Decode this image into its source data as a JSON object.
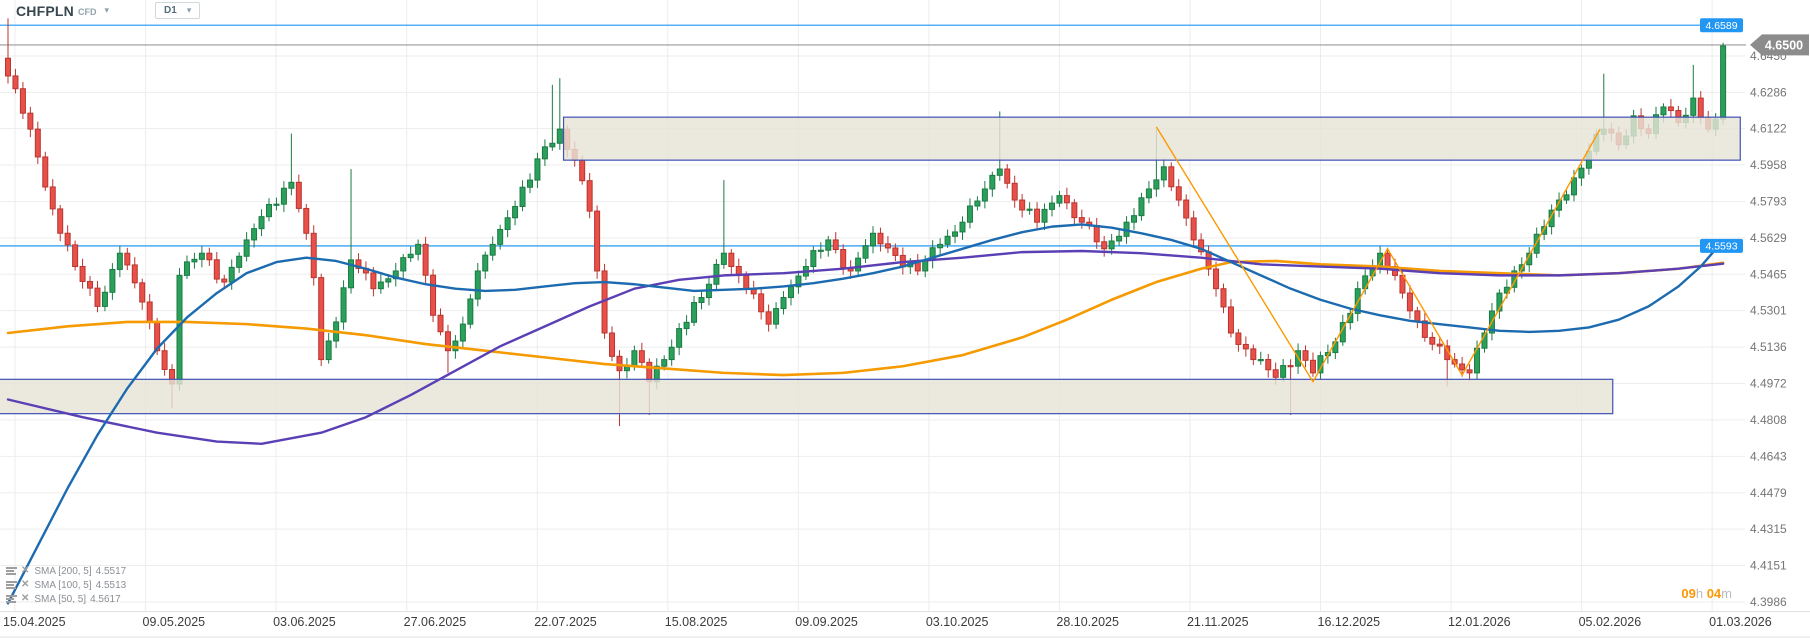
{
  "header": {
    "symbol": "CHFPLN",
    "market": "CFD",
    "timeframe": "D1",
    "symbol_caret": "▾",
    "tf_caret": "▾"
  },
  "countdown": {
    "hours": "09",
    "hours_unit": "h",
    "minutes": "04",
    "minutes_unit": "m"
  },
  "chart_data": {
    "type": "candlestick",
    "title": "CHFPLN CFD, D1",
    "y_ticks": [
      "4.6450",
      "4.6286",
      "4.6122",
      "4.5958",
      "4.5793",
      "4.5629",
      "4.5465",
      "4.5301",
      "4.5136",
      "4.4972",
      "4.4808",
      "4.4643",
      "4.4479",
      "4.4315",
      "4.4151",
      "4.3986"
    ],
    "x_labels": [
      "15.04.2025",
      "09.05.2025",
      "03.06.2025",
      "27.06.2025",
      "22.07.2025",
      "15.08.2025",
      "09.09.2025",
      "03.10.2025",
      "28.10.2025",
      "21.11.2025",
      "16.12.2025",
      "12.01.2026",
      "05.02.2026",
      "01.03.2026"
    ],
    "ylim": [
      4.3986,
      4.665
    ],
    "grid": true,
    "candles": {
      "count": 231,
      "first_open": 4.644,
      "close_anchors": [
        [
          0,
          4.636
        ],
        [
          3,
          4.612
        ],
        [
          6,
          4.576
        ],
        [
          9,
          4.55
        ],
        [
          12,
          4.532
        ],
        [
          15,
          4.556
        ],
        [
          18,
          4.534
        ],
        [
          20,
          4.512
        ],
        [
          22,
          4.497
        ],
        [
          23,
          4.546
        ],
        [
          26,
          4.556
        ],
        [
          29,
          4.543
        ],
        [
          32,
          4.562
        ],
        [
          35,
          4.578
        ],
        [
          38,
          4.588
        ],
        [
          40,
          4.565
        ],
        [
          41,
          4.545
        ],
        [
          42,
          4.508
        ],
        [
          44,
          4.525
        ],
        [
          46,
          4.553
        ],
        [
          49,
          4.54
        ],
        [
          52,
          4.548
        ],
        [
          55,
          4.56
        ],
        [
          57,
          4.528
        ],
        [
          59,
          4.512
        ],
        [
          61,
          4.524
        ],
        [
          63,
          4.548
        ],
        [
          65,
          4.56
        ],
        [
          67,
          4.572
        ],
        [
          70,
          4.589
        ],
        [
          72,
          4.604
        ],
        [
          74,
          4.612
        ],
        [
          76,
          4.598
        ],
        [
          78,
          4.575
        ],
        [
          79,
          4.548
        ],
        [
          80,
          4.52
        ],
        [
          82,
          4.503
        ],
        [
          84,
          4.512
        ],
        [
          86,
          4.498
        ],
        [
          88,
          4.508
        ],
        [
          90,
          4.522
        ],
        [
          93,
          4.536
        ],
        [
          96,
          4.556
        ],
        [
          99,
          4.54
        ],
        [
          102,
          4.524
        ],
        [
          104,
          4.536
        ],
        [
          107,
          4.55
        ],
        [
          110,
          4.562
        ],
        [
          113,
          4.548
        ],
        [
          116,
          4.565
        ],
        [
          119,
          4.555
        ],
        [
          122,
          4.548
        ],
        [
          125,
          4.56
        ],
        [
          128,
          4.57
        ],
        [
          131,
          4.585
        ],
        [
          133,
          4.594
        ],
        [
          135,
          4.58
        ],
        [
          138,
          4.57
        ],
        [
          141,
          4.582
        ],
        [
          144,
          4.57
        ],
        [
          147,
          4.558
        ],
        [
          150,
          4.57
        ],
        [
          153,
          4.585
        ],
        [
          155,
          4.595
        ],
        [
          157,
          4.58
        ],
        [
          159,
          4.562
        ],
        [
          162,
          4.54
        ],
        [
          164,
          4.52
        ],
        [
          167,
          4.508
        ],
        [
          170,
          4.5
        ],
        [
          173,
          4.512
        ],
        [
          175,
          4.502
        ],
        [
          178,
          4.516
        ],
        [
          181,
          4.54
        ],
        [
          184,
          4.556
        ],
        [
          186,
          4.546
        ],
        [
          188,
          4.53
        ],
        [
          190,
          4.518
        ],
        [
          193,
          4.508
        ],
        [
          196,
          4.502
        ],
        [
          198,
          4.52
        ],
        [
          200,
          4.538
        ],
        [
          202,
          4.548
        ],
        [
          204,
          4.556
        ],
        [
          206,
          4.568
        ],
        [
          208,
          4.58
        ],
        [
          210,
          4.59
        ],
        [
          212,
          4.602
        ],
        [
          214,
          4.612
        ],
        [
          216,
          4.605
        ],
        [
          218,
          4.618
        ],
        [
          220,
          4.61
        ],
        [
          222,
          4.622
        ],
        [
          224,
          4.615
        ],
        [
          226,
          4.626
        ],
        [
          228,
          4.612
        ],
        [
          229,
          4.6165
        ],
        [
          230,
          4.6495
        ]
      ],
      "wick_spikes": [
        {
          "i": 0,
          "h": 4.662
        },
        {
          "i": 22,
          "l": 4.486
        },
        {
          "i": 38,
          "h": 4.61
        },
        {
          "i": 46,
          "h": 4.594
        },
        {
          "i": 59,
          "l": 4.502
        },
        {
          "i": 73,
          "h": 4.632
        },
        {
          "i": 74,
          "h": 4.635
        },
        {
          "i": 82,
          "l": 4.478
        },
        {
          "i": 86,
          "l": 4.483
        },
        {
          "i": 96,
          "h": 4.589
        },
        {
          "i": 133,
          "h": 4.62
        },
        {
          "i": 154,
          "h": 4.612
        },
        {
          "i": 172,
          "l": 4.483
        },
        {
          "i": 193,
          "l": 4.496
        },
        {
          "i": 214,
          "h": 4.637
        },
        {
          "i": 226,
          "h": 4.641
        },
        {
          "i": 230,
          "h": 4.651,
          "l": 4.614
        }
      ],
      "last_candle": {
        "open": 4.6165,
        "high": 4.651,
        "low": 4.614,
        "close": 4.6495
      }
    },
    "sma": [
      {
        "label": "SMA [200, 5]",
        "value": "4.5517",
        "color": "#f59a00",
        "width": 2.6,
        "points": [
          [
            0,
            4.52
          ],
          [
            8,
            4.523
          ],
          [
            16,
            4.525
          ],
          [
            24,
            4.525
          ],
          [
            32,
            4.524
          ],
          [
            40,
            4.522
          ],
          [
            48,
            4.519
          ],
          [
            56,
            4.515
          ],
          [
            64,
            4.512
          ],
          [
            72,
            4.509
          ],
          [
            80,
            4.506
          ],
          [
            88,
            4.504
          ],
          [
            96,
            4.502
          ],
          [
            104,
            4.501
          ],
          [
            112,
            4.502
          ],
          [
            120,
            4.505
          ],
          [
            128,
            4.51
          ],
          [
            136,
            4.518
          ],
          [
            142,
            4.526
          ],
          [
            148,
            4.535
          ],
          [
            154,
            4.543
          ],
          [
            160,
            4.549
          ],
          [
            164,
            4.552
          ],
          [
            170,
            4.5525
          ],
          [
            176,
            4.551
          ],
          [
            184,
            4.55
          ],
          [
            192,
            4.548
          ],
          [
            200,
            4.547
          ],
          [
            208,
            4.546
          ],
          [
            216,
            4.547
          ],
          [
            224,
            4.549
          ],
          [
            230,
            4.5517
          ]
        ]
      },
      {
        "label": "SMA [100, 5]",
        "value": "4.5513",
        "color": "#5b3fb5",
        "width": 2.4,
        "points": [
          [
            0,
            4.49
          ],
          [
            10,
            4.482
          ],
          [
            20,
            4.475
          ],
          [
            28,
            4.471
          ],
          [
            34,
            4.47
          ],
          [
            42,
            4.475
          ],
          [
            48,
            4.482
          ],
          [
            54,
            4.492
          ],
          [
            60,
            4.503
          ],
          [
            66,
            4.514
          ],
          [
            72,
            4.523
          ],
          [
            78,
            4.532
          ],
          [
            84,
            4.54
          ],
          [
            90,
            4.544
          ],
          [
            96,
            4.546
          ],
          [
            104,
            4.547
          ],
          [
            112,
            4.549
          ],
          [
            120,
            4.552
          ],
          [
            128,
            4.554
          ],
          [
            136,
            4.5565
          ],
          [
            144,
            4.557
          ],
          [
            152,
            4.556
          ],
          [
            160,
            4.554
          ],
          [
            168,
            4.551
          ],
          [
            176,
            4.55
          ],
          [
            184,
            4.549
          ],
          [
            192,
            4.547
          ],
          [
            200,
            4.546
          ],
          [
            208,
            4.546
          ],
          [
            216,
            4.547
          ],
          [
            224,
            4.549
          ],
          [
            230,
            4.5513
          ]
        ]
      },
      {
        "label": "SMA [50, 5]",
        "value": "4.5617",
        "color": "#1c6bb0",
        "width": 2.4,
        "points": [
          [
            0,
            4.398
          ],
          [
            4,
            4.424
          ],
          [
            8,
            4.45
          ],
          [
            12,
            4.474
          ],
          [
            16,
            4.495
          ],
          [
            20,
            4.513
          ],
          [
            24,
            4.527
          ],
          [
            28,
            4.538
          ],
          [
            32,
            4.547
          ],
          [
            36,
            4.552
          ],
          [
            40,
            4.554
          ],
          [
            44,
            4.5525
          ],
          [
            48,
            4.549
          ],
          [
            52,
            4.545
          ],
          [
            56,
            4.542
          ],
          [
            60,
            4.54
          ],
          [
            64,
            4.539
          ],
          [
            68,
            4.5395
          ],
          [
            72,
            4.541
          ],
          [
            76,
            4.5425
          ],
          [
            80,
            4.543
          ],
          [
            84,
            4.542
          ],
          [
            88,
            4.5405
          ],
          [
            92,
            4.539
          ],
          [
            96,
            4.5395
          ],
          [
            100,
            4.54
          ],
          [
            104,
            4.541
          ],
          [
            108,
            4.5425
          ],
          [
            112,
            4.5445
          ],
          [
            116,
            4.547
          ],
          [
            120,
            4.55
          ],
          [
            124,
            4.554
          ],
          [
            128,
            4.558
          ],
          [
            132,
            4.562
          ],
          [
            136,
            4.5655
          ],
          [
            140,
            4.568
          ],
          [
            144,
            4.569
          ],
          [
            148,
            4.5675
          ],
          [
            152,
            4.565
          ],
          [
            156,
            4.562
          ],
          [
            160,
            4.558
          ],
          [
            164,
            4.552
          ],
          [
            168,
            4.546
          ],
          [
            172,
            4.54
          ],
          [
            176,
            4.535
          ],
          [
            180,
            4.531
          ],
          [
            184,
            4.528
          ],
          [
            188,
            4.5255
          ],
          [
            192,
            4.524
          ],
          [
            196,
            4.5225
          ],
          [
            200,
            4.521
          ],
          [
            204,
            4.5205
          ],
          [
            208,
            4.521
          ],
          [
            212,
            4.5225
          ],
          [
            216,
            4.526
          ],
          [
            220,
            4.532
          ],
          [
            224,
            4.541
          ],
          [
            227,
            4.55
          ],
          [
            230,
            4.5617
          ]
        ]
      }
    ],
    "zones": [
      {
        "name": "resistance-zone",
        "from_i": 74.5,
        "to_i": 232.3,
        "price_low": 4.598,
        "price_high": 4.6174
      },
      {
        "name": "support-zone",
        "from_i": -1.2,
        "to_i": 215.2,
        "price_low": 4.4836,
        "price_high": 4.4991
      }
    ],
    "levels": [
      {
        "price": 4.6589,
        "label": "4.6589",
        "line_color": "#2196f3",
        "line_width": 1.2,
        "badge": "rect",
        "badge_color": "#2196f3"
      },
      {
        "price": 4.65,
        "label": "4.6500",
        "line_color": "#9a9a9a",
        "line_width": 1.2,
        "badge": "arrow",
        "badge_color": "#8c8c8c"
      },
      {
        "price": 4.5593,
        "label": "4.5593",
        "line_color": "#64b5f6",
        "line_width": 1.7,
        "badge": "rect",
        "badge_color": "#2196f3"
      }
    ],
    "trendline": {
      "color": "#ff9800",
      "width": 1.4,
      "points": [
        [
          154,
          4.613
        ],
        [
          175,
          4.498
        ],
        [
          185,
          4.558
        ],
        [
          195,
          4.501
        ],
        [
          213.5,
          4.612
        ]
      ]
    },
    "colors": {
      "bull": "#2aa05a",
      "bull_border": "#1b7b44",
      "bear": "#e8504a",
      "bear_border": "#b9352f",
      "zone_fill": "#e6e4d7",
      "zone_border": "#3f51b5",
      "grid": "#ededed",
      "axis_text": "#757575",
      "date_text": "#3c3c3c",
      "plot_border": "#e0e0e0"
    }
  }
}
